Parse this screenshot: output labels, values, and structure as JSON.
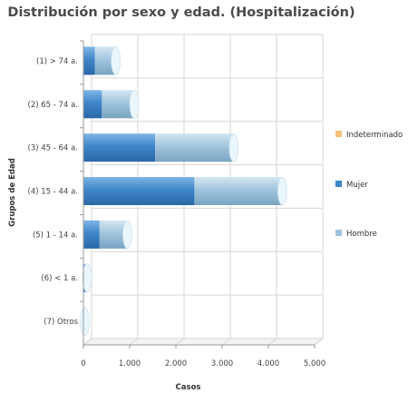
{
  "chart_data": {
    "type": "bar",
    "orientation": "horizontal",
    "stacked": true,
    "style": "3d-cylinder",
    "title": "Distribución por sexo y edad. (Hospitalización)",
    "xlabel": "Casos",
    "ylabel": "Grupos de Edad",
    "xlim": [
      0,
      5000
    ],
    "xticks": [
      0,
      1000,
      2000,
      3000,
      4000,
      5000
    ],
    "xtick_labels": [
      "0",
      "1.000",
      "2.000",
      "3.000",
      "4.000",
      "5.000"
    ],
    "grid": true,
    "legend_position": "right",
    "categories": [
      "(1) > 74 a.",
      "(2) 65 - 74 a.",
      "(3) 45 - 64 a.",
      "(4) 15 - 44 a.",
      "(5) 1 - 14 a.",
      "(6) < 1 a.",
      "(7) Otros"
    ],
    "series": [
      {
        "name": "Mujer",
        "color": "#3f86c9",
        "values": [
          250,
          400,
          1550,
          2400,
          350,
          50,
          10
        ]
      },
      {
        "name": "Hombre",
        "color": "#9dc2dc",
        "values": [
          450,
          700,
          1700,
          1900,
          600,
          30,
          20
        ]
      },
      {
        "name": "Indeterminado",
        "color": "#f5c27a",
        "values": [
          0,
          0,
          0,
          0,
          0,
          0,
          0
        ]
      }
    ],
    "legend": [
      {
        "name": "Indeterminado",
        "color": "#f5c27a"
      },
      {
        "name": "Mujer",
        "color": "#3f86c9"
      },
      {
        "name": "Hombre",
        "color": "#9dc2dc"
      }
    ]
  }
}
